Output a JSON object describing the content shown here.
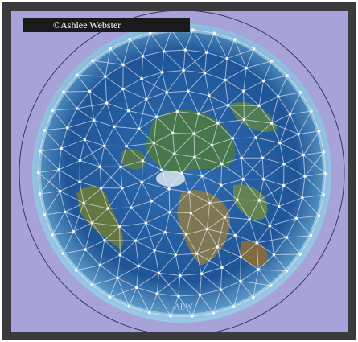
{
  "image": {
    "credit": "©Ashlee Webster",
    "signature": "AEW"
  }
}
